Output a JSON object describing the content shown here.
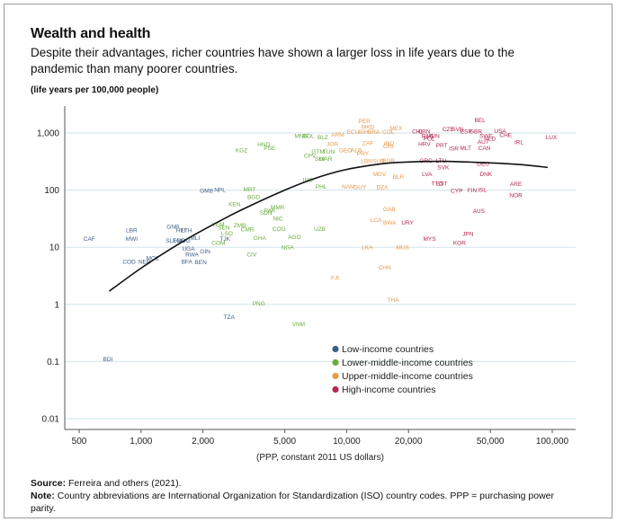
{
  "title": "Wealth and health",
  "subtitle": "Despite their advantages, richer countries have shown a larger loss in life years due to the pandemic than many poorer countries.",
  "units_note": "(life years per 100,000 people)",
  "source_label": "Source:",
  "source_text": "Ferreira and others (2021).",
  "note_label": "Note:",
  "note_text": "Country abbreviations are International Organization for Standardization (ISO) country codes. PPP = purchasing power parity.",
  "colors": {
    "low": "#3d5f86",
    "lower_middle": "#6aad3e",
    "upper_middle": "#e89a4c",
    "high": "#b2294e",
    "grid": "#cfe5ea",
    "fit": "#111111"
  },
  "chart_data": {
    "type": "scatter",
    "xlabel": "(PPP, constant 2011 US dollars)",
    "xscale": "log",
    "yscale": "log",
    "xlim": [
      450,
      110000
    ],
    "ylim": [
      0.008,
      2200
    ],
    "xticks": [
      500,
      1000,
      2000,
      5000,
      10000,
      20000,
      50000,
      100000
    ],
    "xticklabels": [
      "500",
      "1,000",
      "2,000",
      "5,000",
      "10,000",
      "20,000",
      "50,000",
      "100,000"
    ],
    "yticks": [
      0.01,
      0.1,
      1,
      10,
      100,
      1000
    ],
    "yticklabels": [
      "0.01",
      "0.1",
      "1",
      "10",
      "100",
      "1,000"
    ],
    "grid": "horizontal",
    "legend_position": "bottom-right",
    "series": [
      {
        "key": "low",
        "name": "Low-income countries",
        "color": "#3d5f86",
        "points": [
          {
            "label": "BDI",
            "x": 690,
            "y": 0.11
          },
          {
            "label": "CAF",
            "x": 560,
            "y": 14
          },
          {
            "label": "MWI",
            "x": 900,
            "y": 14
          },
          {
            "label": "LBR",
            "x": 900,
            "y": 20
          },
          {
            "label": "COD",
            "x": 875,
            "y": 5.6
          },
          {
            "label": "NER",
            "x": 1040,
            "y": 5.6
          },
          {
            "label": "MOZ",
            "x": 1140,
            "y": 6.5
          },
          {
            "label": "SLE",
            "x": 1400,
            "y": 13
          },
          {
            "label": "TGO",
            "x": 1530,
            "y": 13
          },
          {
            "label": "MDG",
            "x": 1610,
            "y": 13
          },
          {
            "label": "GNB",
            "x": 1430,
            "y": 23
          },
          {
            "label": "HTI",
            "x": 1560,
            "y": 20
          },
          {
            "label": "ETH",
            "x": 1660,
            "y": 20
          },
          {
            "label": "MLI",
            "x": 1830,
            "y": 14.5
          },
          {
            "label": "UGA",
            "x": 1700,
            "y": 9.5
          },
          {
            "label": "RWA",
            "x": 1770,
            "y": 7.4
          },
          {
            "label": "GIN",
            "x": 2050,
            "y": 8.5
          },
          {
            "label": "BFA",
            "x": 1670,
            "y": 5.6
          },
          {
            "label": "BEN",
            "x": 1950,
            "y": 5.5
          },
          {
            "label": "TJK",
            "x": 2560,
            "y": 14
          },
          {
            "label": "GMB",
            "x": 2080,
            "y": 98
          },
          {
            "label": "NPL",
            "x": 2420,
            "y": 102
          },
          {
            "label": "TZA",
            "x": 2680,
            "y": 0.6
          }
        ]
      },
      {
        "key": "lower_middle",
        "name": "Lower-middle-income countries",
        "color": "#6aad3e",
        "points": [
          {
            "label": "YEM",
            "x": 2370,
            "y": 25
          },
          {
            "label": "SEN",
            "x": 2530,
            "y": 22
          },
          {
            "label": "ZMB",
            "x": 3020,
            "y": 24
          },
          {
            "label": "LSO",
            "x": 2620,
            "y": 17.5
          },
          {
            "label": "COM",
            "x": 2380,
            "y": 12
          },
          {
            "label": "KEN",
            "x": 2850,
            "y": 57
          },
          {
            "label": "MRT",
            "x": 3370,
            "y": 103
          },
          {
            "label": "BGD",
            "x": 3530,
            "y": 76
          },
          {
            "label": "CMR",
            "x": 3290,
            "y": 20.5
          },
          {
            "label": "GHA",
            "x": 3780,
            "y": 14.5
          },
          {
            "label": "CIV",
            "x": 3450,
            "y": 7.5
          },
          {
            "label": "SDN",
            "x": 4050,
            "y": 40
          },
          {
            "label": "PAK",
            "x": 4230,
            "y": 44
          },
          {
            "label": "MMR",
            "x": 4620,
            "y": 50
          },
          {
            "label": "NIC",
            "x": 4630,
            "y": 32
          },
          {
            "label": "COG",
            "x": 4690,
            "y": 21
          },
          {
            "label": "AGO",
            "x": 5570,
            "y": 15
          },
          {
            "label": "NGA",
            "x": 5160,
            "y": 10
          },
          {
            "label": "PNG",
            "x": 3740,
            "y": 1.03
          },
          {
            "label": "VNM",
            "x": 5830,
            "y": 0.45
          },
          {
            "label": "KGZ",
            "x": 3080,
            "y": 500
          },
          {
            "label": "HND",
            "x": 3950,
            "y": 630
          },
          {
            "label": "PSE",
            "x": 4220,
            "y": 540
          },
          {
            "label": "MNG",
            "x": 6020,
            "y": 890
          },
          {
            "label": "BOL",
            "x": 6530,
            "y": 890
          },
          {
            "label": "BLZ",
            "x": 7660,
            "y": 840
          },
          {
            "label": "GTM",
            "x": 7260,
            "y": 470
          },
          {
            "label": "TUN",
            "x": 8180,
            "y": 470
          },
          {
            "label": "CPV",
            "x": 6630,
            "y": 400
          },
          {
            "label": "SLV",
            "x": 7420,
            "y": 355
          },
          {
            "label": "MAR",
            "x": 7920,
            "y": 355
          },
          {
            "label": "IND",
            "x": 6480,
            "y": 150
          },
          {
            "label": "PHL",
            "x": 7520,
            "y": 115
          },
          {
            "label": "UZB",
            "x": 7400,
            "y": 21
          }
        ]
      },
      {
        "key": "upper_middle",
        "name": "Upper-middle-income countries",
        "color": "#e89a4c",
        "points": [
          {
            "label": "PER",
            "x": 12200,
            "y": 1600
          },
          {
            "label": "MKD",
            "x": 12700,
            "y": 1270
          },
          {
            "label": "ECU",
            "x": 10750,
            "y": 1040
          },
          {
            "label": "BIH",
            "x": 12100,
            "y": 1040
          },
          {
            "label": "BRA",
            "x": 13550,
            "y": 1040
          },
          {
            "label": "MEX",
            "x": 17400,
            "y": 1200
          },
          {
            "label": "COL",
            "x": 15950,
            "y": 1040
          },
          {
            "label": "ARM",
            "x": 9040,
            "y": 930
          },
          {
            "label": "JOR",
            "x": 8530,
            "y": 640
          },
          {
            "label": "ZAF",
            "x": 12700,
            "y": 660
          },
          {
            "label": "IRQ",
            "x": 16100,
            "y": 650
          },
          {
            "label": "CRI",
            "x": 15900,
            "y": 580
          },
          {
            "label": "GEO",
            "x": 9870,
            "y": 500
          },
          {
            "label": "ALB",
            "x": 11150,
            "y": 500
          },
          {
            "label": "PRY",
            "x": 12000,
            "y": 440
          },
          {
            "label": "LBN",
            "x": 12500,
            "y": 320
          },
          {
            "label": "SUR",
            "x": 14300,
            "y": 320
          },
          {
            "label": "BGR",
            "x": 16000,
            "y": 330
          },
          {
            "label": "MDV",
            "x": 14450,
            "y": 190
          },
          {
            "label": "BLR",
            "x": 17850,
            "y": 170
          },
          {
            "label": "NAM",
            "x": 10200,
            "y": 115
          },
          {
            "label": "GUY",
            "x": 11600,
            "y": 112
          },
          {
            "label": "DZA",
            "x": 14900,
            "y": 112
          },
          {
            "label": "GAB",
            "x": 16100,
            "y": 46
          },
          {
            "label": "LCA",
            "x": 13900,
            "y": 30
          },
          {
            "label": "BWA",
            "x": 16200,
            "y": 27
          },
          {
            "label": "LKA",
            "x": 12600,
            "y": 10
          },
          {
            "label": "MUS",
            "x": 18700,
            "y": 10
          },
          {
            "label": "CHN",
            "x": 15300,
            "y": 4.4
          },
          {
            "label": "FJI",
            "x": 8780,
            "y": 2.9
          },
          {
            "label": "THA",
            "x": 16800,
            "y": 1.2
          }
        ]
      },
      {
        "key": "high",
        "name": "High-income countries",
        "color": "#b2294e",
        "points": [
          {
            "label": "BEL",
            "x": 44500,
            "y": 1680
          },
          {
            "label": "CZE",
            "x": 31200,
            "y": 1170
          },
          {
            "label": "SVN",
            "x": 34700,
            "y": 1170
          },
          {
            "label": "ESP",
            "x": 38100,
            "y": 1070
          },
          {
            "label": "GBR",
            "x": 42500,
            "y": 1070
          },
          {
            "label": "USA",
            "x": 55800,
            "y": 1090
          },
          {
            "label": "CHE",
            "x": 59400,
            "y": 920
          },
          {
            "label": "SWE",
            "x": 47700,
            "y": 880
          },
          {
            "label": "NLD",
            "x": 49700,
            "y": 790
          },
          {
            "label": "AUT",
            "x": 46200,
            "y": 700
          },
          {
            "label": "CAN",
            "x": 46800,
            "y": 540
          },
          {
            "label": "IRL",
            "x": 68900,
            "y": 690
          },
          {
            "label": "LUX",
            "x": 99000,
            "y": 840
          },
          {
            "label": "CHL",
            "x": 22200,
            "y": 1070
          },
          {
            "label": "CRN",
            "x": 23800,
            "y": 1060
          },
          {
            "label": "HUN",
            "x": 26400,
            "y": 880
          },
          {
            "label": "RUS",
            "x": 24800,
            "y": 880
          },
          {
            "label": "POL",
            "x": 25200,
            "y": 790
          },
          {
            "label": "HRV",
            "x": 23900,
            "y": 640
          },
          {
            "label": "PRT",
            "x": 29000,
            "y": 610
          },
          {
            "label": "ISR",
            "x": 33200,
            "y": 530
          },
          {
            "label": "MLT",
            "x": 37900,
            "y": 540
          },
          {
            "label": "GRC",
            "x": 24300,
            "y": 330
          },
          {
            "label": "LTU",
            "x": 28800,
            "y": 325
          },
          {
            "label": "SVK",
            "x": 29500,
            "y": 250
          },
          {
            "label": "DEU",
            "x": 46100,
            "y": 290
          },
          {
            "label": "LVA",
            "x": 24600,
            "y": 190
          },
          {
            "label": "DNK",
            "x": 47600,
            "y": 190
          },
          {
            "label": "TTO",
            "x": 27600,
            "y": 130
          },
          {
            "label": "EST",
            "x": 29000,
            "y": 130
          },
          {
            "label": "CYP",
            "x": 34300,
            "y": 98
          },
          {
            "label": "FIN",
            "x": 40800,
            "y": 100
          },
          {
            "label": "ISL",
            "x": 45700,
            "y": 102
          },
          {
            "label": "ARE",
            "x": 66600,
            "y": 128
          },
          {
            "label": "NOR",
            "x": 66600,
            "y": 82
          },
          {
            "label": "AUS",
            "x": 43900,
            "y": 43
          },
          {
            "label": "JPN",
            "x": 38900,
            "y": 17
          },
          {
            "label": "KOR",
            "x": 35400,
            "y": 12
          },
          {
            "label": "URY",
            "x": 19800,
            "y": 27
          },
          {
            "label": "MYS",
            "x": 25300,
            "y": 14
          }
        ]
      }
    ],
    "fit_curve": {
      "x": [
        700,
        1000,
        1500,
        2000,
        3000,
        5000,
        7000,
        10000,
        15000,
        20000,
        30000,
        50000,
        70000,
        95000
      ],
      "y": [
        1.7,
        4.3,
        11,
        20,
        43,
        100,
        160,
        230,
        290,
        310,
        318,
        300,
        280,
        250
      ]
    }
  }
}
